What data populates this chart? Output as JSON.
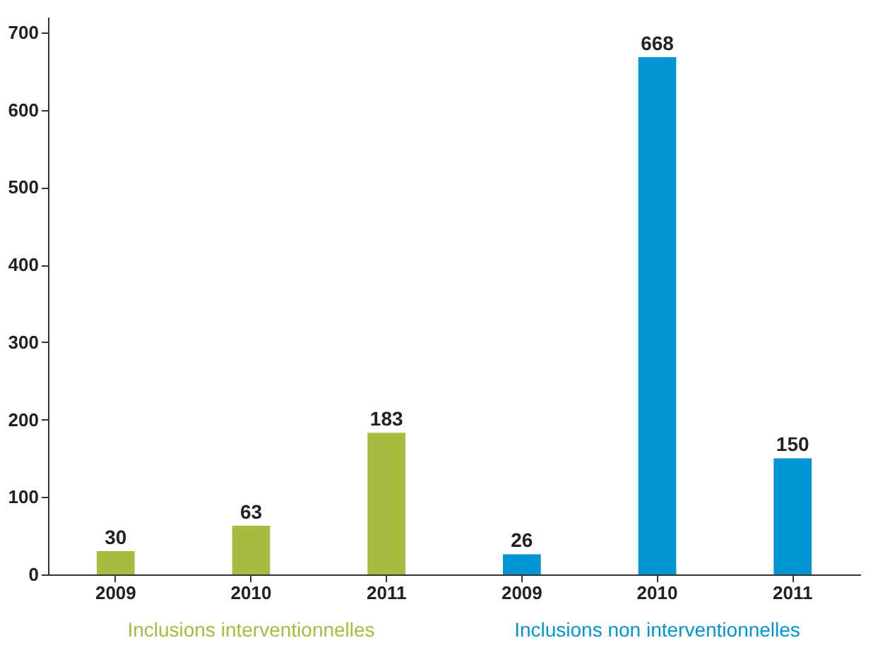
{
  "chart_data": {
    "type": "bar",
    "categories": [
      "2009",
      "2010",
      "2011",
      "2009",
      "2010",
      "2011"
    ],
    "series": [
      {
        "name": "Inclusions interventionnelles",
        "color": "#a9bb3f",
        "values": [
          30,
          63,
          183,
          null,
          null,
          null
        ]
      },
      {
        "name": "Inclusions non interventionnelles",
        "color": "#0096d6",
        "values": [
          null,
          null,
          null,
          26,
          668,
          150
        ]
      }
    ],
    "ylim": [
      0,
      720
    ],
    "yticks": [
      0,
      100,
      200,
      300,
      400,
      500,
      600,
      700
    ],
    "grid": false,
    "data_labels": true
  }
}
